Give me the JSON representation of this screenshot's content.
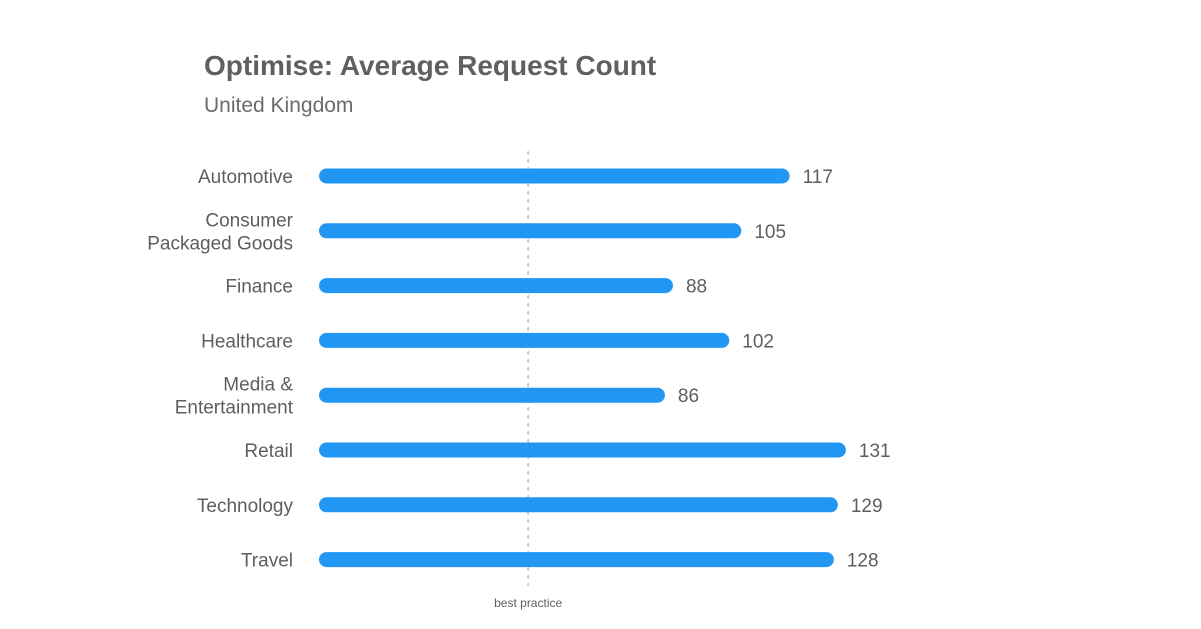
{
  "chart_data": {
    "type": "bar",
    "orientation": "horizontal",
    "title": "Optimise: Average Request Count",
    "subtitle": "United Kingdom",
    "categories": [
      [
        "Automotive"
      ],
      [
        "Consumer",
        "Packaged Goods"
      ],
      [
        "Finance"
      ],
      [
        "Healthcare"
      ],
      [
        "Media &",
        "Entertainment"
      ],
      [
        "Retail"
      ],
      [
        "Technology"
      ],
      [
        "Travel"
      ]
    ],
    "values": [
      117,
      105,
      88,
      102,
      86,
      131,
      129,
      128
    ],
    "reference_line": {
      "label": "best practice",
      "value": 52
    },
    "xlim": [
      0,
      135
    ],
    "grid": false,
    "legend": "none",
    "colors": {
      "bar": "#2196f3",
      "text": "#5d5e62",
      "title": "#5f6063",
      "reference_line": "#c8cace"
    }
  }
}
